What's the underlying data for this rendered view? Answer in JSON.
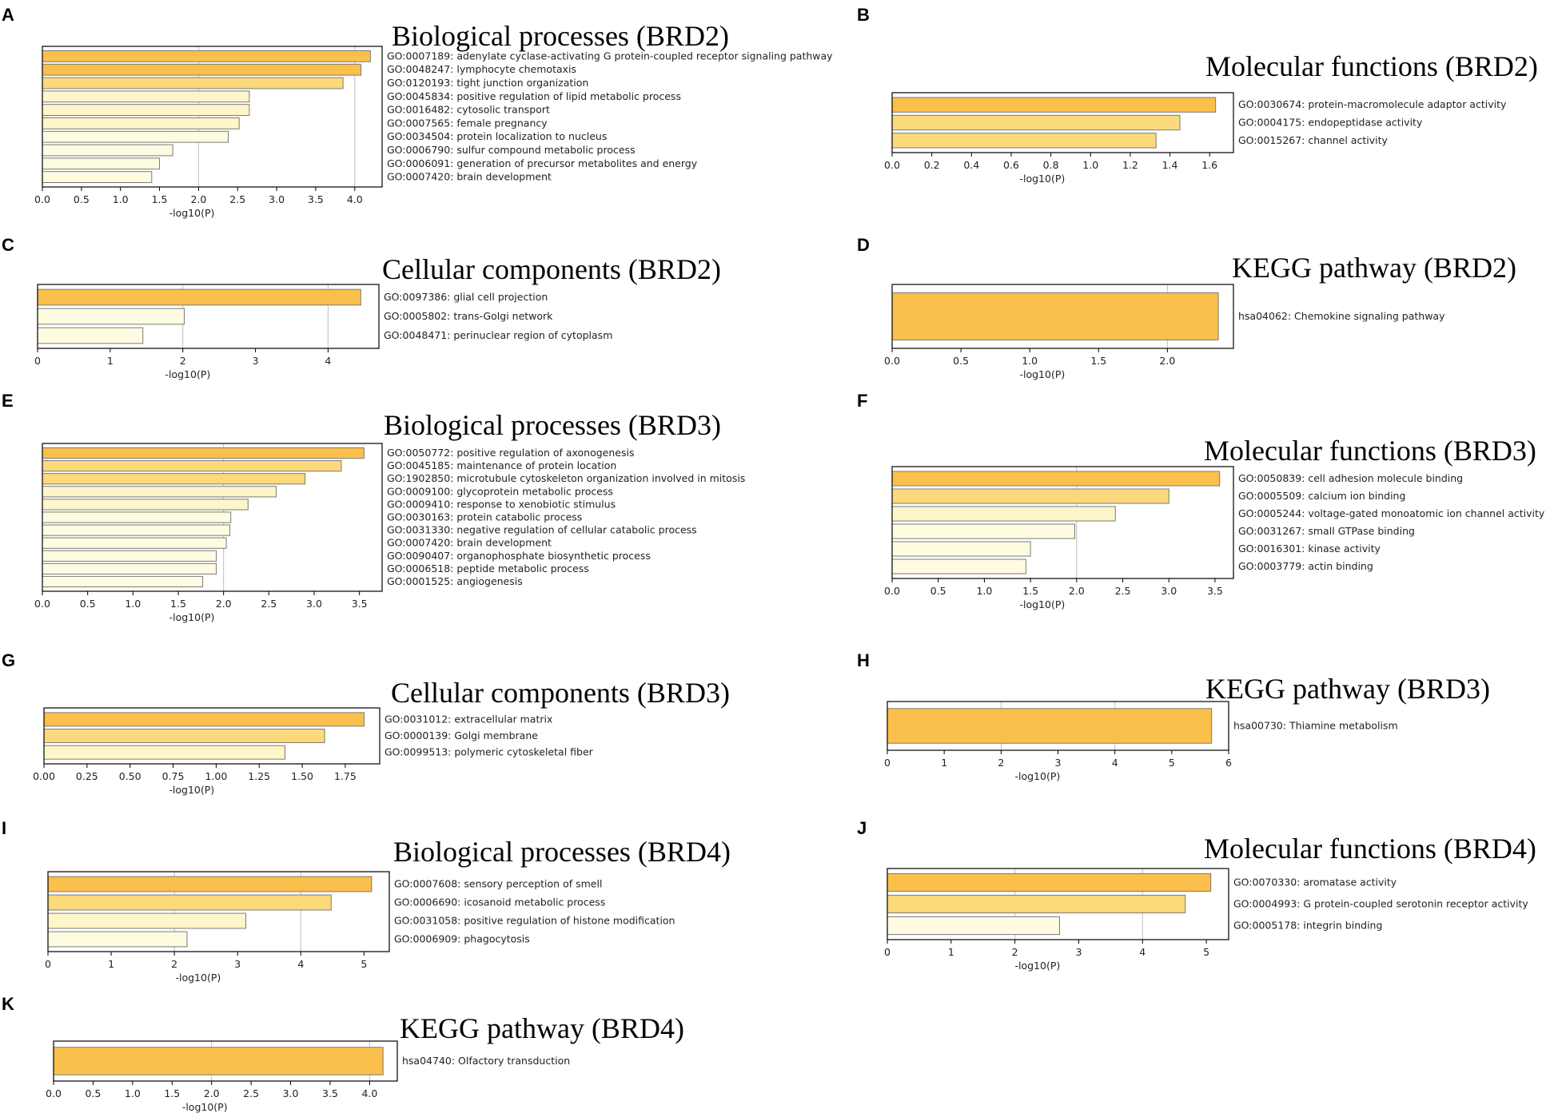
{
  "figure": {
    "description_label": "GO and KEGG enrichment bar charts for BRD2, BRD3 and BRD4"
  },
  "colors": {
    "high": "#fbbf4b",
    "mid": "#fcd97b",
    "low": "#fef6c8",
    "lowest": "#fffbe0",
    "bar_edge": "#7a7a7a",
    "grid": "#bdbdbd",
    "axis": "#000000"
  },
  "chart_data": [
    {
      "panel": "A",
      "type": "bar",
      "orientation": "horizontal",
      "title": "Biological processes (BRD2)",
      "xlabel": "-log10(P)",
      "ylabel": "",
      "xlim": [
        0,
        4.35
      ],
      "ticks": [
        "0.0",
        "0.5",
        "1.0",
        "1.5",
        "2.0",
        "2.5",
        "3.0",
        "3.5",
        "4.0"
      ],
      "grid": [
        2,
        4
      ],
      "categories": [
        "GO:0007189: adenylate cyclase-activating G protein-coupled receptor signaling pathway",
        "GO:0048247: lymphocyte chemotaxis",
        "GO:0120193: tight junction organization",
        "GO:0045834: positive regulation of lipid metabolic process",
        "GO:0016482: cytosolic transport",
        "GO:0007565: female pregnancy",
        "GO:0034504: protein localization to nucleus",
        "GO:0006790: sulfur compound metabolic process",
        "GO:0006091: generation of precursor metabolites and energy",
        "GO:0007420: brain development"
      ],
      "values": [
        4.2,
        4.08,
        3.85,
        2.65,
        2.65,
        2.52,
        2.38,
        1.67,
        1.5,
        1.4
      ]
    },
    {
      "panel": "B",
      "type": "bar",
      "orientation": "horizontal",
      "title": "Molecular functions (BRD2)",
      "xlabel": "-log10(P)",
      "ylabel": "",
      "xlim": [
        0,
        1.72
      ],
      "ticks": [
        "0.0",
        "0.2",
        "0.4",
        "0.6",
        "0.8",
        "1.0",
        "1.2",
        "1.4",
        "1.6"
      ],
      "grid": [],
      "categories": [
        "GO:0030674: protein-macromolecule adaptor activity",
        "GO:0004175: endopeptidase activity",
        "GO:0015267: channel activity"
      ],
      "values": [
        1.63,
        1.45,
        1.33
      ]
    },
    {
      "panel": "C",
      "type": "bar",
      "orientation": "horizontal",
      "title": "Cellular components (BRD2)",
      "xlabel": "-log10(P)",
      "ylabel": "",
      "xlim": [
        0,
        4.7
      ],
      "ticks": [
        "0",
        "1",
        "2",
        "3",
        "4"
      ],
      "grid": [
        2,
        4
      ],
      "categories": [
        "GO:0097386: glial cell projection",
        "GO:0005802: trans-Golgi network",
        "GO:0048471: perinuclear region of cytoplasm"
      ],
      "values": [
        4.45,
        2.02,
        1.45
      ]
    },
    {
      "panel": "D",
      "type": "bar",
      "orientation": "horizontal",
      "title": "KEGG pathway (BRD2)",
      "xlabel": "-log10(P)",
      "ylabel": "",
      "xlim": [
        0,
        2.48
      ],
      "ticks": [
        "0.0",
        "0.5",
        "1.0",
        "1.5",
        "2.0"
      ],
      "grid": [
        2
      ],
      "categories": [
        "hsa04062: Chemokine signaling pathway"
      ],
      "values": [
        2.37
      ]
    },
    {
      "panel": "E",
      "type": "bar",
      "orientation": "horizontal",
      "title": "Biological processes (BRD3)",
      "xlabel": "-log10(P)",
      "ylabel": "",
      "xlim": [
        0,
        3.75
      ],
      "ticks": [
        "0.0",
        "0.5",
        "1.0",
        "1.5",
        "2.0",
        "2.5",
        "3.0",
        "3.5"
      ],
      "grid": [
        2
      ],
      "categories": [
        "GO:0050772: positive regulation of axonogenesis",
        "GO:0045185: maintenance of protein location",
        "GO:1902850: microtubule cytoskeleton organization involved in mitosis",
        "GO:0009100: glycoprotein metabolic process",
        "GO:0009410: response to xenobiotic stimulus",
        "GO:0030163: protein catabolic process",
        "GO:0031330: negative regulation of cellular catabolic process",
        "GO:0007420: brain development",
        "GO:0090407: organophosphate biosynthetic process",
        "GO:0006518: peptide metabolic process",
        "GO:0001525: angiogenesis"
      ],
      "values": [
        3.55,
        3.3,
        2.9,
        2.58,
        2.27,
        2.08,
        2.07,
        2.03,
        1.92,
        1.92,
        1.77
      ]
    },
    {
      "panel": "F",
      "type": "bar",
      "orientation": "horizontal",
      "title": "Molecular functions (BRD3)",
      "xlabel": "-log10(P)",
      "ylabel": "",
      "xlim": [
        0,
        3.7
      ],
      "ticks": [
        "0.0",
        "0.5",
        "1.0",
        "1.5",
        "2.0",
        "2.5",
        "3.0",
        "3.5"
      ],
      "grid": [
        2
      ],
      "categories": [
        "GO:0050839: cell adhesion molecule binding",
        "GO:0005509: calcium ion binding",
        "GO:0005244: voltage-gated monoatomic ion channel activity",
        "GO:0031267: small GTPase binding",
        "GO:0016301: kinase activity",
        "GO:0003779: actin binding"
      ],
      "values": [
        3.55,
        3.0,
        2.42,
        1.98,
        1.5,
        1.45
      ]
    },
    {
      "panel": "G",
      "type": "bar",
      "orientation": "horizontal",
      "title": "Cellular components (BRD3)",
      "xlabel": "-log10(P)",
      "ylabel": "",
      "xlim": [
        0,
        1.95
      ],
      "ticks": [
        "0.00",
        "0.25",
        "0.50",
        "0.75",
        "1.00",
        "1.25",
        "1.50",
        "1.75"
      ],
      "grid": [],
      "categories": [
        "GO:0031012: extracellular matrix",
        "GO:0000139: Golgi membrane",
        "GO:0099513: polymeric cytoskeletal fiber"
      ],
      "values": [
        1.86,
        1.63,
        1.4
      ]
    },
    {
      "panel": "H",
      "type": "bar",
      "orientation": "horizontal",
      "title": "KEGG pathway (BRD3)",
      "xlabel": "-log10(P)",
      "ylabel": "",
      "xlim": [
        0,
        6
      ],
      "ticks": [
        "0",
        "1",
        "2",
        "3",
        "4",
        "5",
        "6"
      ],
      "grid": [
        2,
        4
      ],
      "categories": [
        "hsa00730: Thiamine metabolism"
      ],
      "values": [
        5.7
      ]
    },
    {
      "panel": "I",
      "type": "bar",
      "orientation": "horizontal",
      "title": "Biological processes (BRD4)",
      "xlabel": "-log10(P)",
      "ylabel": "",
      "xlim": [
        0,
        5.4
      ],
      "ticks": [
        "0",
        "1",
        "2",
        "3",
        "4",
        "5"
      ],
      "grid": [
        2,
        4
      ],
      "categories": [
        "GO:0007608: sensory perception of smell",
        "GO:0006690: icosanoid metabolic process",
        "GO:0031058: positive regulation of histone modification",
        "GO:0006909: phagocytosis"
      ],
      "values": [
        5.12,
        4.48,
        3.13,
        2.2
      ]
    },
    {
      "panel": "J",
      "type": "bar",
      "orientation": "horizontal",
      "title": "Molecular functions (BRD4)",
      "xlabel": "-log10(P)",
      "ylabel": "",
      "xlim": [
        0,
        5.35
      ],
      "ticks": [
        "0",
        "1",
        "2",
        "3",
        "4",
        "5"
      ],
      "grid": [
        2,
        4
      ],
      "categories": [
        "GO:0070330: aromatase activity",
        "GO:0004993: G protein-coupled serotonin receptor activity",
        "GO:0005178: integrin binding"
      ],
      "values": [
        5.07,
        4.67,
        2.7
      ]
    },
    {
      "panel": "K",
      "type": "bar",
      "orientation": "horizontal",
      "title": "KEGG pathway (BRD4)",
      "xlabel": "-log10(P)",
      "ylabel": "",
      "xlim": [
        0,
        4.35
      ],
      "ticks": [
        "0.0",
        "0.5",
        "1.0",
        "1.5",
        "2.0",
        "2.5",
        "3.0",
        "3.5",
        "4.0"
      ],
      "grid": [
        2,
        4
      ],
      "categories": [
        "hsa04740: Olfactory transduction"
      ],
      "values": [
        4.17
      ]
    }
  ]
}
